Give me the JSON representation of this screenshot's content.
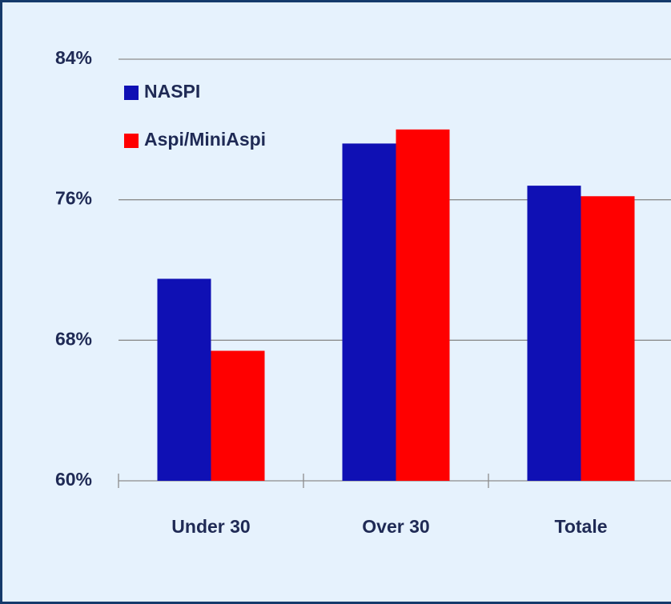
{
  "chart_data": {
    "type": "bar",
    "categories": [
      "Under 30",
      "Over 30",
      "Totale"
    ],
    "series": [
      {
        "name": "NASPI",
        "color": "#0f10b4",
        "values": [
          71.5,
          79.2,
          76.8
        ]
      },
      {
        "name": "Aspi/MiniAspi",
        "color": "#ff0000",
        "values": [
          67.4,
          80.0,
          76.2
        ]
      }
    ],
    "ylim": [
      60,
      84
    ],
    "yticks": [
      {
        "value": 60,
        "label": "60%"
      },
      {
        "value": 68,
        "label": "68%"
      },
      {
        "value": 76,
        "label": "76%"
      },
      {
        "value": 84,
        "label": "84%"
      }
    ],
    "grid": true,
    "legend": "top-left"
  }
}
